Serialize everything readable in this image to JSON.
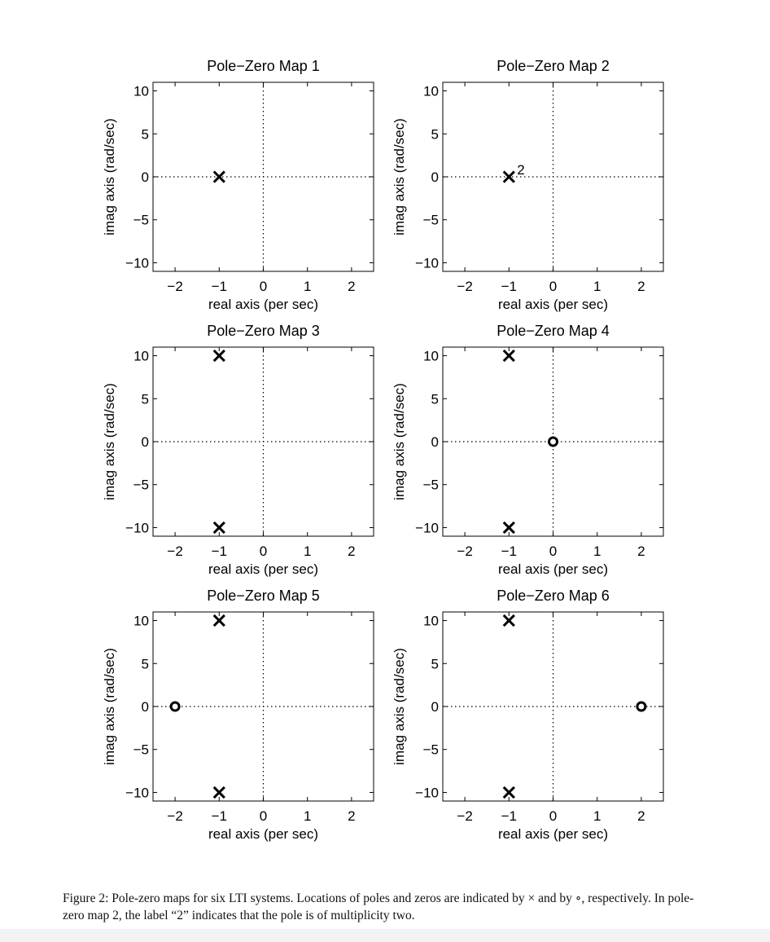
{
  "chart_data": [
    {
      "type": "scatter",
      "title": "Pole−Zero Map 1",
      "xlabel": "real axis (per sec)",
      "ylabel": "imag axis (rad/sec)",
      "xlim": [
        -2.5,
        2.5
      ],
      "ylim": [
        -11,
        11
      ],
      "xticks": [
        -2,
        -1,
        0,
        1,
        2
      ],
      "yticks": [
        -10,
        -5,
        0,
        5,
        10
      ],
      "xtick_labels": [
        "−2",
        "−1",
        "0",
        "1",
        "2"
      ],
      "ytick_labels": [
        "−10",
        "−5",
        "0",
        "5",
        "10"
      ],
      "grid": "dotted zero lines",
      "poles": [
        {
          "x": -1,
          "y": 0
        }
      ],
      "zeros": []
    },
    {
      "type": "scatter",
      "title": "Pole−Zero Map 2",
      "xlabel": "real axis (per sec)",
      "ylabel": "imag axis (rad/sec)",
      "xlim": [
        -2.5,
        2.5
      ],
      "ylim": [
        -11,
        11
      ],
      "xticks": [
        -2,
        -1,
        0,
        1,
        2
      ],
      "yticks": [
        -10,
        -5,
        0,
        5,
        10
      ],
      "xtick_labels": [
        "−2",
        "−1",
        "0",
        "1",
        "2"
      ],
      "ytick_labels": [
        "−10",
        "−5",
        "0",
        "5",
        "10"
      ],
      "grid": "dotted zero lines",
      "poles": [
        {
          "x": -1,
          "y": 0,
          "multiplicity": "2"
        }
      ],
      "zeros": []
    },
    {
      "type": "scatter",
      "title": "Pole−Zero Map 3",
      "xlabel": "real axis (per sec)",
      "ylabel": "imag axis (rad/sec)",
      "xlim": [
        -2.5,
        2.5
      ],
      "ylim": [
        -11,
        11
      ],
      "xticks": [
        -2,
        -1,
        0,
        1,
        2
      ],
      "yticks": [
        -10,
        -5,
        0,
        5,
        10
      ],
      "xtick_labels": [
        "−2",
        "−1",
        "0",
        "1",
        "2"
      ],
      "ytick_labels": [
        "−10",
        "−5",
        "0",
        "5",
        "10"
      ],
      "grid": "dotted zero lines",
      "poles": [
        {
          "x": -1,
          "y": 10
        },
        {
          "x": -1,
          "y": -10
        }
      ],
      "zeros": []
    },
    {
      "type": "scatter",
      "title": "Pole−Zero Map 4",
      "xlabel": "real axis (per sec)",
      "ylabel": "imag axis (rad/sec)",
      "xlim": [
        -2.5,
        2.5
      ],
      "ylim": [
        -11,
        11
      ],
      "xticks": [
        -2,
        -1,
        0,
        1,
        2
      ],
      "yticks": [
        -10,
        -5,
        0,
        5,
        10
      ],
      "xtick_labels": [
        "−2",
        "−1",
        "0",
        "1",
        "2"
      ],
      "ytick_labels": [
        "−10",
        "−5",
        "0",
        "5",
        "10"
      ],
      "grid": "dotted zero lines",
      "poles": [
        {
          "x": -1,
          "y": 10
        },
        {
          "x": -1,
          "y": -10
        }
      ],
      "zeros": [
        {
          "x": 0,
          "y": 0
        }
      ]
    },
    {
      "type": "scatter",
      "title": "Pole−Zero Map 5",
      "xlabel": "real axis (per sec)",
      "ylabel": "imag axis (rad/sec)",
      "xlim": [
        -2.5,
        2.5
      ],
      "ylim": [
        -11,
        11
      ],
      "xticks": [
        -2,
        -1,
        0,
        1,
        2
      ],
      "yticks": [
        -10,
        -5,
        0,
        5,
        10
      ],
      "xtick_labels": [
        "−2",
        "−1",
        "0",
        "1",
        "2"
      ],
      "ytick_labels": [
        "−10",
        "−5",
        "0",
        "5",
        "10"
      ],
      "grid": "dotted zero lines",
      "poles": [
        {
          "x": -1,
          "y": 10
        },
        {
          "x": -1,
          "y": -10
        }
      ],
      "zeros": [
        {
          "x": -2,
          "y": 0
        }
      ]
    },
    {
      "type": "scatter",
      "title": "Pole−Zero Map 6",
      "xlabel": "real axis (per sec)",
      "ylabel": "imag axis (rad/sec)",
      "xlim": [
        -2.5,
        2.5
      ],
      "ylim": [
        -11,
        11
      ],
      "xticks": [
        -2,
        -1,
        0,
        1,
        2
      ],
      "yticks": [
        -10,
        -5,
        0,
        5,
        10
      ],
      "xtick_labels": [
        "−2",
        "−1",
        "0",
        "1",
        "2"
      ],
      "ytick_labels": [
        "−10",
        "−5",
        "0",
        "5",
        "10"
      ],
      "grid": "dotted zero lines",
      "poles": [
        {
          "x": -1,
          "y": 10
        },
        {
          "x": -1,
          "y": -10
        }
      ],
      "zeros": [
        {
          "x": 2,
          "y": 0
        }
      ]
    }
  ],
  "caption": "Figure 2: Pole-zero maps for six LTI systems. Locations of poles and zeros are indicated by × and by ∘, respectively. In pole-zero map 2, the label “2” indicates that the pole is of multiplicity two."
}
